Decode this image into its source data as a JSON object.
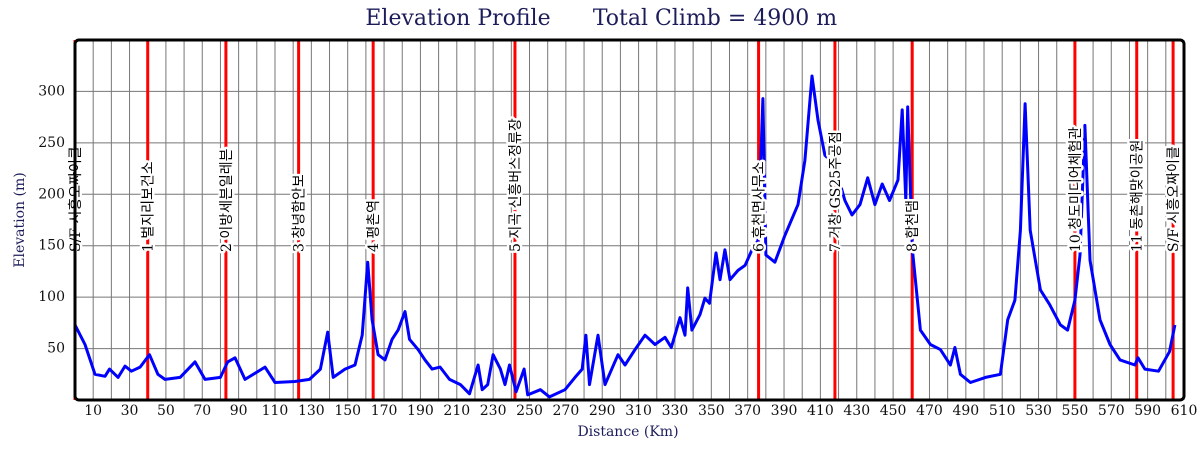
{
  "chart_data": {
    "type": "line",
    "title": "Elevation Profile",
    "subtitle": "Total Climb = 4900 m",
    "x_label": "Distance (Km)",
    "y_label": "Elevation (m)",
    "xlim": [
      0,
      610
    ],
    "ylim": [
      0,
      350
    ],
    "xticks": [
      10,
      30,
      50,
      70,
      90,
      110,
      130,
      150,
      170,
      190,
      210,
      230,
      250,
      270,
      290,
      310,
      330,
      350,
      370,
      390,
      410,
      430,
      450,
      470,
      490,
      510,
      530,
      550,
      570,
      590,
      610
    ],
    "xminorticks": [
      0,
      20,
      40,
      60,
      80,
      100,
      120,
      140,
      160,
      180,
      200,
      220,
      240,
      260,
      280,
      300,
      320,
      340,
      360,
      380,
      400,
      420,
      440,
      460,
      480,
      500,
      520,
      540,
      560,
      580,
      600
    ],
    "yticks": [
      50,
      100,
      150,
      200,
      250,
      300
    ],
    "grid": true,
    "color": "#0000ff",
    "checkpoint_color": "#ff0000",
    "checkpoints": [
      {
        "label": "S/F 시흥오짜이클",
        "x": 0
      },
      {
        "label": "1 벌지리보건소",
        "x": 40
      },
      {
        "label": "2 이방세븐일레븐",
        "x": 83
      },
      {
        "label": "3 창녕함안보",
        "x": 123
      },
      {
        "label": "4 평촌역",
        "x": 164
      },
      {
        "label": "5 지곡 신흥버스정류장",
        "x": 242
      },
      {
        "label": "6 휴천면사무소",
        "x": 376
      },
      {
        "label": "7 거창 GS25주공점",
        "x": 418
      },
      {
        "label": "8 합천댐",
        "x": 460.5
      },
      {
        "label": "10 청도미디어체험관",
        "x": 550
      },
      {
        "label": "11 동촌해맞이공원",
        "x": 584
      },
      {
        "label": "S/F 시흥오짜이클",
        "x": 604
      }
    ],
    "x": [
      0,
      5.5,
      11,
      16.5,
      19,
      23.7,
      27.5,
      31,
      35.8,
      41,
      45.6,
      49.5,
      57.8,
      66,
      71.5,
      80,
      84,
      88,
      93.5,
      104.5,
      110,
      121,
      129,
      135,
      139,
      142,
      148.5,
      154,
      158,
      161,
      163.4,
      166.7,
      170.5,
      174.4,
      177.7,
      181.5,
      184,
      188.7,
      192.5,
      196.4,
      200.8,
      206,
      212,
      217,
      221.7,
      224,
      227,
      230,
      234,
      236.5,
      239,
      242.6,
      247,
      249,
      256,
      261,
      269.5,
      275,
      279,
      281,
      283,
      287.7,
      291.5,
      298.7,
      302.5,
      308,
      313.5,
      319,
      324.5,
      328,
      332.8,
      335.5,
      337,
      339.3,
      343.8,
      346.5,
      349,
      352.6,
      354.8,
      357.5,
      360.3,
      364.7,
      368.6,
      372.4,
      375.7,
      378.4,
      380,
      385,
      390.5,
      397.7,
      401.5,
      405.4,
      408.7,
      412.5,
      418,
      423.5,
      427.4,
      431.8,
      436,
      440,
      444,
      448,
      452.7,
      455,
      457,
      458,
      460.6,
      465,
      470.5,
      476,
      481.5,
      484,
      487,
      492.5,
      500.8,
      509,
      513,
      517,
      520,
      522.6,
      525.4,
      531,
      536,
      542,
      546,
      550,
      552.8,
      555.5,
      558.3,
      563.8,
      569.3,
      574.8,
      583,
      584.7,
      588.5,
      596,
      602,
      605
    ],
    "values": [
      73,
      54,
      25,
      23,
      30,
      22,
      33,
      28,
      32,
      44,
      25,
      20,
      22,
      37,
      20,
      22,
      37,
      41,
      20,
      32,
      17,
      18,
      20,
      30,
      66,
      22,
      30,
      34,
      63,
      134,
      78,
      44,
      39,
      59,
      68,
      86,
      59,
      49,
      39,
      30,
      32,
      20,
      15,
      6,
      34,
      10,
      15,
      44,
      30,
      15,
      34,
      8,
      30,
      5,
      10,
      3,
      10,
      22,
      30,
      63,
      15,
      63,
      15,
      44,
      34,
      49,
      63,
      54,
      61,
      51,
      80,
      63,
      109,
      68,
      83,
      99,
      94,
      143,
      117,
      146,
      117,
      126,
      131,
      146,
      155,
      293,
      141,
      134,
      160,
      190,
      233,
      315,
      272,
      238,
      228,
      194,
      180,
      190,
      216,
      190,
      210,
      194,
      214,
      282,
      194,
      285,
      146,
      68,
      54,
      49,
      34,
      51,
      25,
      17,
      22,
      25,
      78,
      97,
      165,
      288,
      165,
      107,
      93,
      73,
      68,
      97,
      141,
      267,
      136,
      78,
      54,
      39,
      34,
      41,
      30,
      28,
      47,
      73
    ]
  }
}
